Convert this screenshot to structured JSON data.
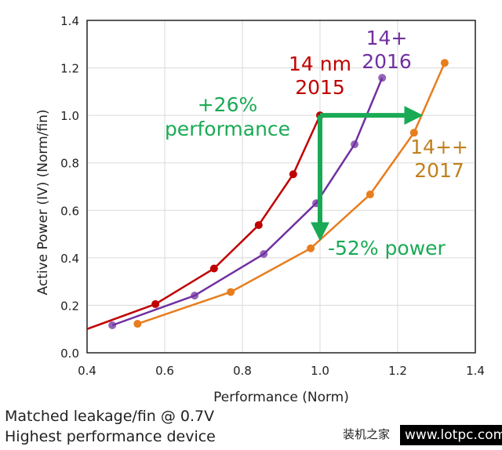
{
  "chart_data": {
    "type": "line",
    "title": "",
    "xlabel": "Performance (Norm)",
    "ylabel": "Active Power (IV) (Norm/fin)",
    "xlim": [
      0.4,
      1.4
    ],
    "ylim": [
      0.0,
      1.4
    ],
    "xticks": [
      "0.4",
      "0.6",
      "0.8",
      "1.0",
      "1.2",
      "1.4"
    ],
    "yticks": [
      "0.0",
      "0.2",
      "0.4",
      "0.6",
      "0.8",
      "1.0",
      "1.2",
      "1.4"
    ],
    "grid": true,
    "series": [
      {
        "name": "14 nm 2015",
        "label_lines": [
          "14 nm",
          "2015"
        ],
        "color": "#c00000",
        "start": [
          0.4,
          0.1
        ],
        "points": [
          [
            0.576,
            0.205
          ],
          [
            0.727,
            0.355
          ],
          [
            0.842,
            0.538
          ],
          [
            0.931,
            0.752
          ],
          [
            1.0,
            1.0
          ]
        ]
      },
      {
        "name": "14+ 2016",
        "label_lines": [
          "14+",
          "2016"
        ],
        "color": "#7030a0",
        "points": [
          [
            0.465,
            0.116
          ],
          [
            0.677,
            0.241
          ],
          [
            0.855,
            0.416
          ],
          [
            0.99,
            0.63
          ],
          [
            1.089,
            0.878
          ],
          [
            1.16,
            1.158
          ]
        ]
      },
      {
        "name": "14++ 2017",
        "label_lines": [
          "14++",
          "2017"
        ],
        "color": "#e87d1e",
        "points": [
          [
            0.53,
            0.122
          ],
          [
            0.77,
            0.256
          ],
          [
            0.976,
            0.44
          ],
          [
            1.129,
            0.667
          ],
          [
            1.242,
            0.927
          ],
          [
            1.321,
            1.221
          ]
        ]
      }
    ],
    "annotations": [
      {
        "lines": [
          "+26%",
          "performance"
        ],
        "color": "#1aaa55",
        "arrow_from": [
          1.0,
          1.0
        ],
        "arrow_to": [
          1.26,
          1.0
        ]
      },
      {
        "lines": [
          "-52% power"
        ],
        "color": "#1aaa55",
        "arrow_from": [
          1.0,
          1.0
        ],
        "arrow_to": [
          1.0,
          0.48
        ]
      }
    ]
  },
  "footer": [
    "Matched leakage/fin @ 0.7V",
    "Highest performance device"
  ],
  "watermark": {
    "cn": "装机之家",
    "url": "www.lotpc.com"
  }
}
